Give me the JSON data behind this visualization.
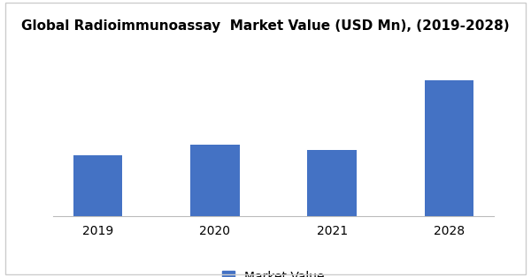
{
  "title": "Global Radioimmunoassay  Market Value (USD Mn), (2019-2028)",
  "categories": [
    "2019",
    "2020",
    "2021",
    "2028"
  ],
  "values": [
    32,
    38,
    35,
    72
  ],
  "bar_color": "#4472C4",
  "legend_label": "Market Value",
  "ylim": [
    0,
    85
  ],
  "background_color": "#ffffff",
  "title_fontsize": 11,
  "tick_fontsize": 10,
  "bar_width": 0.42,
  "border_color": "#cccccc"
}
